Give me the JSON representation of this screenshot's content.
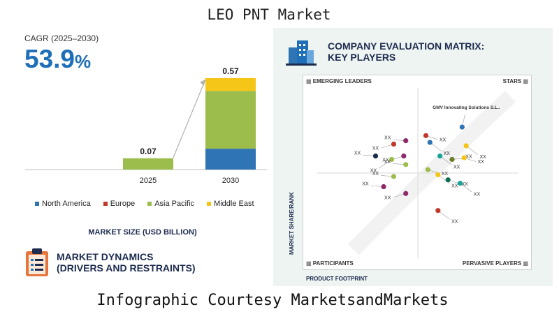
{
  "title": "LEO PNT Market",
  "footer": "Infographic Courtesy MarketsandMarkets",
  "cagr": {
    "label": "CAGR (2025–2030)",
    "value": "53.9",
    "unit": "%"
  },
  "market_size_label": "MARKET SIZE (USD BILLION)",
  "dynamics_title": "MARKET DYNAMICS\n(DRIVERS AND RESTRAINTS)",
  "chart_data": [
    {
      "type": "bar",
      "stacked": true,
      "categories": [
        "2025",
        "2030"
      ],
      "totals": [
        "0.07",
        "0.57"
      ],
      "series": [
        {
          "name": "North America",
          "color": "#2f74b5",
          "values": [
            0.0,
            0.13
          ]
        },
        {
          "name": "Europe",
          "color": "#c0392b",
          "values": [
            0.0,
            0.0
          ]
        },
        {
          "name": "Asia Pacific",
          "color": "#9cbd4c",
          "values": [
            0.07,
            0.36
          ]
        },
        {
          "name": "Middle East",
          "color": "#f5c518",
          "values": [
            0.0,
            0.08
          ]
        }
      ],
      "xlabel": "MARKET SIZE (USD BILLION)",
      "ylim": [
        0,
        0.6
      ]
    },
    {
      "type": "scatter",
      "title": "COMPANY EVALUATION MATRIX:\nKEY PLAYERS",
      "xlabel": "PRODUCT FOOTPRINT",
      "ylabel": "MARKET SHARE/RANK",
      "quadrants": {
        "top_left": "EMERGING LEADERS",
        "top_right": "STARS",
        "bottom_left": "PARTICIPANTS",
        "bottom_right": "PERVASIVE PLAYERS"
      },
      "points": [
        {
          "label": "GMV Innovating Solutions S.L..",
          "x": 0.72,
          "y": 0.77,
          "color": "#2f74b5"
        },
        {
          "label": "XX",
          "x": 0.54,
          "y": 0.72,
          "color": "#c0392b"
        },
        {
          "label": "XX",
          "x": 0.56,
          "y": 0.68,
          "color": "#2f74b5"
        },
        {
          "label": "XX",
          "x": 0.44,
          "y": 0.69,
          "color": "#8e2a6b"
        },
        {
          "label": "XX",
          "x": 0.38,
          "y": 0.67,
          "color": "#c0392b"
        },
        {
          "label": "XX",
          "x": 0.74,
          "y": 0.66,
          "color": "#f5c518"
        },
        {
          "label": "XX",
          "x": 0.29,
          "y": 0.6,
          "color": "#1d2b4f"
        },
        {
          "label": "XX",
          "x": 0.43,
          "y": 0.6,
          "color": "#8e2a6b"
        },
        {
          "label": "XX",
          "x": 0.61,
          "y": 0.6,
          "color": "#1aa39a"
        },
        {
          "label": "XX",
          "x": 0.67,
          "y": 0.58,
          "color": "#6b7f2a"
        },
        {
          "label": "XX",
          "x": 0.73,
          "y": 0.59,
          "color": "#f5c518"
        },
        {
          "label": "XX",
          "x": 0.37,
          "y": 0.58,
          "color": "#9cbd4c"
        },
        {
          "label": "XX",
          "x": 0.44,
          "y": 0.55,
          "color": "#9cbd4c"
        },
        {
          "label": "XX",
          "x": 0.55,
          "y": 0.52,
          "color": "#9cbd4c"
        },
        {
          "label": "XX",
          "x": 0.6,
          "y": 0.49,
          "color": "#f5c518"
        },
        {
          "label": "XX",
          "x": 0.38,
          "y": 0.48,
          "color": "#9cbd4c"
        },
        {
          "label": "XX",
          "x": 0.65,
          "y": 0.46,
          "color": "#0f6b4f"
        },
        {
          "label": "XX",
          "x": 0.71,
          "y": 0.44,
          "color": "#1aa39a"
        },
        {
          "label": "XX",
          "x": 0.33,
          "y": 0.42,
          "color": "#8e2a6b"
        },
        {
          "label": "XX",
          "x": 0.44,
          "y": 0.38,
          "color": "#8e2a6b"
        },
        {
          "label": "XX",
          "x": 0.6,
          "y": 0.28,
          "color": "#c0392b"
        }
      ]
    }
  ]
}
